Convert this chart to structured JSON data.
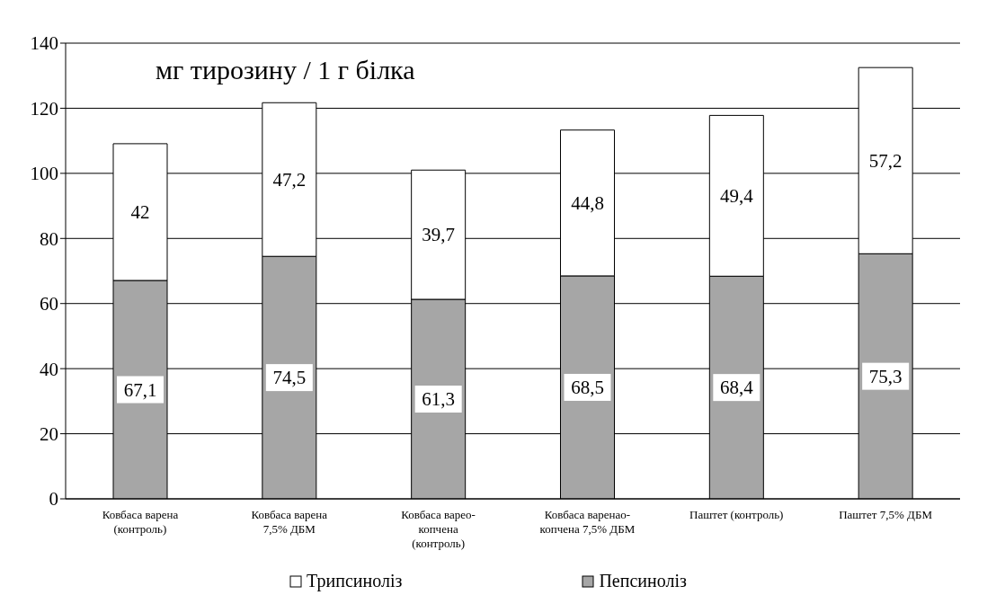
{
  "chart_data": {
    "type": "bar",
    "title": "мг тирозину / 1 г білка",
    "stacked": true,
    "categories": [
      "Ковбаса варена (контроль)",
      "Ковбаса варена 7,5% ДБМ",
      "Ковбаса варео-копчена (контроль)",
      "Ковбаса варенао-копчена 7,5% ДБМ",
      "Паштет (контроль)",
      "Паштет 7,5% ДБМ"
    ],
    "series": [
      {
        "name": "Пепсиноліз",
        "color": "#a6a6a6",
        "values": [
          67.1,
          74.5,
          61.3,
          68.5,
          68.4,
          75.3
        ],
        "value_labels": [
          "67,1",
          "74,5",
          "61,3",
          "68,5",
          "68,4",
          "75,3"
        ]
      },
      {
        "name": "Трипсиноліз",
        "color": "#ffffff",
        "values": [
          42,
          47.2,
          39.7,
          44.8,
          49.4,
          57.2
        ],
        "value_labels": [
          "42",
          "47,2",
          "39,7",
          "44,8",
          "49,4",
          "57,2"
        ]
      }
    ],
    "ylim": [
      0,
      140
    ],
    "yticks": [
      0,
      20,
      40,
      60,
      80,
      100,
      120,
      140
    ],
    "grid": "y",
    "legend": "bottom"
  }
}
